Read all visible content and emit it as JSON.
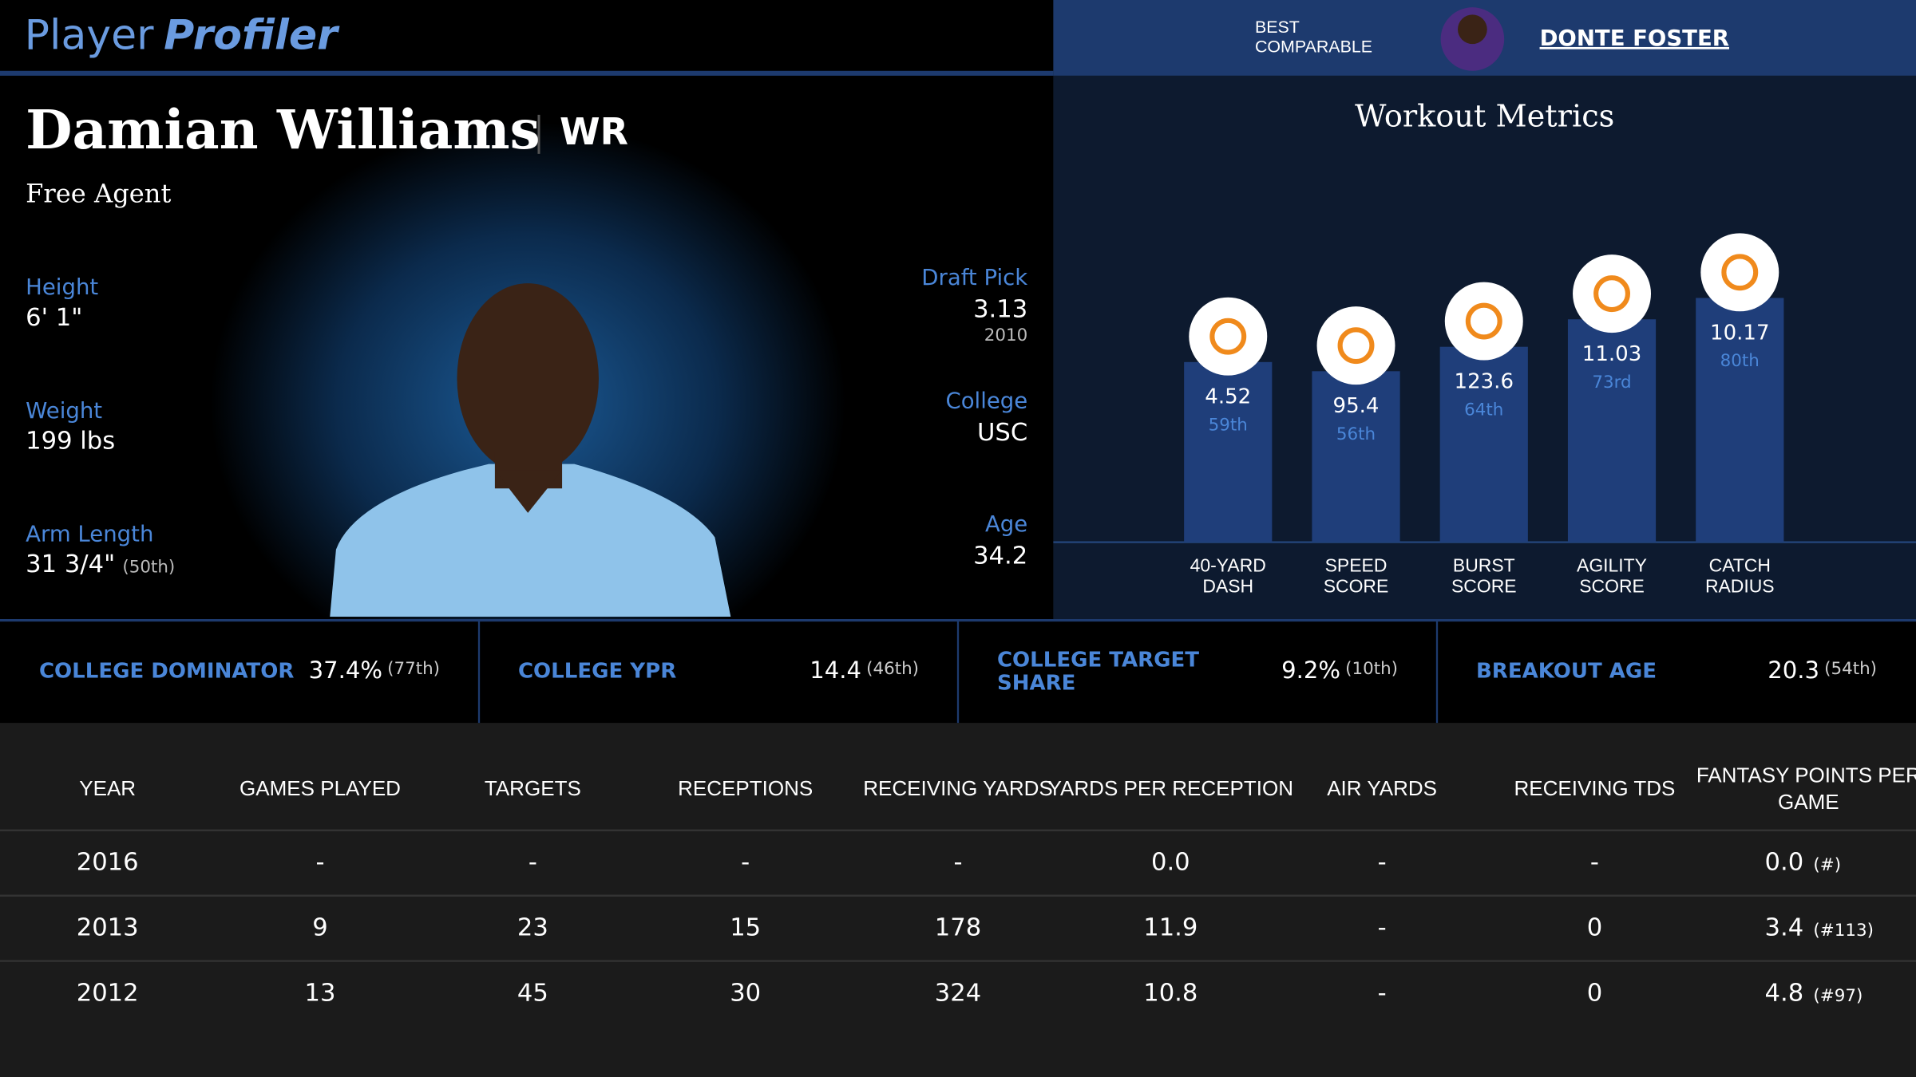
{
  "header": {
    "logo_a": "Player",
    "logo_b": "Profiler",
    "comparable_label_1": "BEST",
    "comparable_label_2": "COMPARABLE",
    "comparable_name": "DONTE FOSTER"
  },
  "player": {
    "name": "Damian Williams",
    "position": "WR",
    "team": "Free Agent"
  },
  "bio_left": [
    {
      "label": "Height",
      "value": "6' 1\""
    },
    {
      "label": "Weight",
      "value": "199 lbs"
    },
    {
      "label": "Arm Length",
      "value": "31 3/4\"",
      "note": "(50th)"
    }
  ],
  "bio_right": [
    {
      "label": "Draft Pick",
      "value": "3.13",
      "note": "2010"
    },
    {
      "label": "College",
      "value": "USC"
    },
    {
      "label": "Age",
      "value": "34.2"
    }
  ],
  "workout": {
    "title": "Workout Metrics",
    "metrics": [
      {
        "label_1": "40-YARD",
        "label_2": "DASH",
        "value": "4.52",
        "percentile": 59,
        "percentile_label": "59th"
      },
      {
        "label_1": "SPEED",
        "label_2": "SCORE",
        "value": "95.4",
        "percentile": 56,
        "percentile_label": "56th"
      },
      {
        "label_1": "BURST",
        "label_2": "SCORE",
        "value": "123.6",
        "percentile": 64,
        "percentile_label": "64th"
      },
      {
        "label_1": "AGILITY",
        "label_2": "SCORE",
        "value": "11.03",
        "percentile": 73,
        "percentile_label": "73rd"
      },
      {
        "label_1": "CATCH",
        "label_2": "RADIUS",
        "value": "10.17",
        "percentile": 80,
        "percentile_label": "80th"
      }
    ]
  },
  "college": [
    {
      "label_1": "COLLEGE DOMINATOR",
      "value": "37.4%",
      "rank": "(77th)"
    },
    {
      "label_1": "COLLEGE YPR",
      "value": "14.4",
      "rank": "(46th)"
    },
    {
      "label_1": "COLLEGE TARGET",
      "label_2": "SHARE",
      "value": "9.2%",
      "rank": "(10th)"
    },
    {
      "label_1": "BREAKOUT AGE",
      "value": "20.3",
      "rank": "(54th)"
    }
  ],
  "table": {
    "headers": [
      "YEAR",
      "GAMES PLAYED",
      "TARGETS",
      "RECEPTIONS",
      "RECEIVING YARDS",
      "YARDS PER RECEPTION",
      "AIR YARDS",
      "RECEIVING TDS",
      [
        "FANTASY POINTS PER",
        "GAME"
      ]
    ],
    "rows": [
      [
        "2016",
        "-",
        "-",
        "-",
        "-",
        "0.0",
        "-",
        "-",
        [
          "0.0",
          "(#)"
        ]
      ],
      [
        "2013",
        "9",
        "23",
        "15",
        "178",
        "11.9",
        "-",
        "0",
        [
          "3.4",
          "(#113)"
        ]
      ],
      [
        "2012",
        "13",
        "45",
        "30",
        "324",
        "10.8",
        "-",
        "0",
        [
          "4.8",
          "(#97)"
        ]
      ]
    ]
  }
}
